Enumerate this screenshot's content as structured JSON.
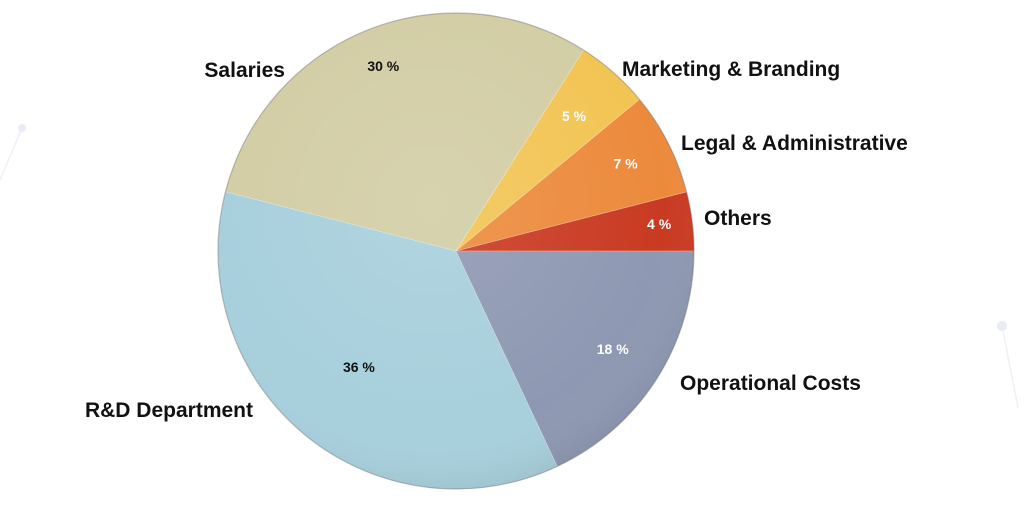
{
  "chart_data": {
    "type": "pie",
    "slices": [
      {
        "label": "Others",
        "value": 4,
        "value_label": "4 %",
        "color": "#c93a22",
        "text_color": "#ffffff"
      },
      {
        "label": "Legal & Administrative",
        "value": 7,
        "value_label": "7  %",
        "color": "#ec8a3c",
        "text_color": "#ffffff"
      },
      {
        "label": "Marketing & Branding",
        "value": 5,
        "value_label": "5 %",
        "color": "#f2c453",
        "text_color": "#ffffff"
      },
      {
        "label": "Salaries",
        "value": 30,
        "value_label": "30 %",
        "color": "#d2cda4",
        "text_color": "#111111"
      },
      {
        "label": "R&D Department",
        "value": 36,
        "value_label": "36 %",
        "color": "#a7cfdc",
        "text_color": "#111111"
      },
      {
        "label": "Operational Costs",
        "value": 18,
        "value_label": "18 %",
        "color": "#8e98b2",
        "text_color": "#ffffff"
      }
    ],
    "start": "3 o'clock",
    "direction": "counter-clockwise",
    "legend": "none (labels placed next to slices)"
  }
}
